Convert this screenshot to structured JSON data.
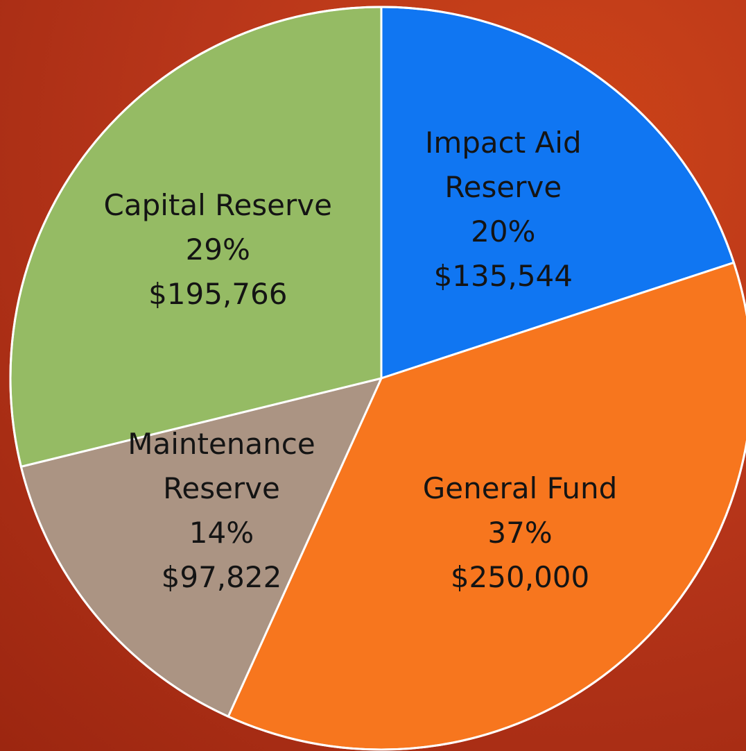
{
  "chart_data": {
    "type": "pie",
    "categories": [
      "Impact Aid Reserve",
      "General Fund",
      "Maintenance Reserve",
      "Capital Reserve"
    ],
    "values": [
      135544,
      250000,
      97822,
      195766
    ],
    "value_labels": [
      "$135,544",
      "$250,000",
      "$97,822",
      "$195,766"
    ],
    "percent_labels": [
      "20%",
      "37%",
      "14%",
      "29%"
    ],
    "colors": [
      "#1076f2",
      "#f7761e",
      "#ab9483",
      "#95bb64"
    ]
  }
}
